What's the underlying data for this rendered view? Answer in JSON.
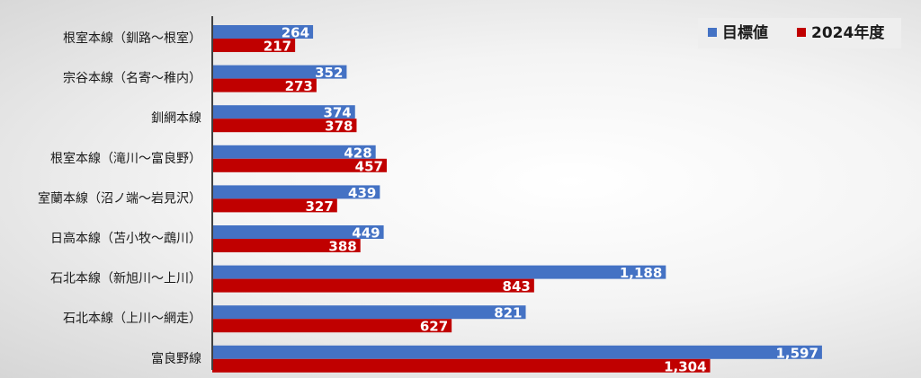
{
  "chart_data": {
    "type": "bar",
    "orientation": "horizontal",
    "categories": [
      "根室本線（釧路～根室）",
      "宗谷本線（名寄～稚内）",
      "釧網本線",
      "根室本線（滝川～富良野）",
      "室蘭本線（沼ノ端～岩見沢）",
      "日高本線（苫小牧～鵡川）",
      "石北本線（新旭川～上川）",
      "石北本線（上川～網走）",
      "富良野線"
    ],
    "series": [
      {
        "name": "目標値",
        "color": "#4472c4",
        "values": [
          264,
          352,
          374,
          428,
          439,
          449,
          1188,
          821,
          1597
        ],
        "labels": [
          "264",
          "352",
          "374",
          "428",
          "439",
          "449",
          "1,188",
          "821",
          "1,597"
        ]
      },
      {
        "name": "2024年度",
        "color": "#c00000",
        "values": [
          217,
          273,
          378,
          457,
          327,
          388,
          843,
          627,
          1304
        ],
        "labels": [
          "217",
          "273",
          "378",
          "457",
          "327",
          "388",
          "843",
          "627",
          "1,304"
        ]
      }
    ],
    "xlim": [
      0,
      1650
    ],
    "grid": false,
    "legend_position": "top-right"
  }
}
